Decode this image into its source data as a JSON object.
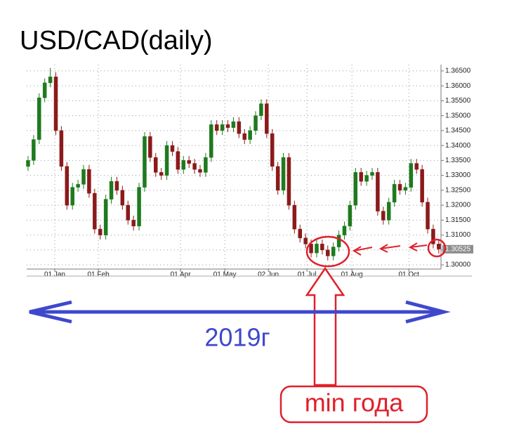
{
  "chart_data": {
    "type": "candlestick",
    "title": "USD/CAD(daily)",
    "up_color": "#1e7a1e",
    "down_color": "#8b1a1a",
    "xlim": [
      -0.25,
      74.4
    ],
    "xticks": [
      {
        "value": 4.81,
        "label": "01 Jan"
      },
      {
        "value": 12.66,
        "label": "01 Feb"
      },
      {
        "value": 27.47,
        "label": "01 Apr"
      },
      {
        "value": 35.45,
        "label": "01 May"
      },
      {
        "value": 43.29,
        "label": "02 Jun"
      },
      {
        "value": 50.25,
        "label": "01 Jul"
      },
      {
        "value": 58.35,
        "label": "01 Aug"
      },
      {
        "value": 68.61,
        "label": "01 Oct"
      }
    ],
    "ylim": [
      1.2986,
      1.3671
    ],
    "yticks": [
      {
        "value": 1.3,
        "label": "1.30000"
      },
      {
        "value": 1.305,
        "label": "1.30500"
      },
      {
        "value": 1.31,
        "label": "1.31000"
      },
      {
        "value": 1.315,
        "label": "1.31500"
      },
      {
        "value": 1.32,
        "label": "1.32000"
      },
      {
        "value": 1.325,
        "label": "1.32500"
      },
      {
        "value": 1.33,
        "label": "1.33000"
      },
      {
        "value": 1.335,
        "label": "1.33500"
      },
      {
        "value": 1.34,
        "label": "1.34000"
      },
      {
        "value": 1.345,
        "label": "1.34500"
      },
      {
        "value": 1.35,
        "label": "1.35000"
      },
      {
        "value": 1.355,
        "label": "1.35500"
      },
      {
        "value": 1.36,
        "label": "1.36000"
      },
      {
        "value": 1.365,
        "label": "1.36500"
      }
    ],
    "grid": true,
    "last_price": 1.30525,
    "open": [
      1.333,
      1.335,
      1.342,
      1.356,
      1.361,
      1.363,
      1.345,
      1.333,
      1.32,
      1.326,
      1.327,
      1.332,
      1.324,
      1.312,
      1.31,
      1.322,
      1.328,
      1.325,
      1.32,
      1.315,
      1.313,
      1.326,
      1.343,
      1.336,
      1.331,
      1.33,
      1.34,
      1.338,
      1.332,
      1.335,
      1.334,
      1.332,
      1.331,
      1.336,
      1.347,
      1.345,
      1.347,
      1.346,
      1.348,
      1.344,
      1.342,
      1.345,
      1.35,
      1.354,
      1.344,
      1.333,
      1.325,
      1.336,
      1.32,
      1.312,
      1.309,
      1.307,
      1.304,
      1.307,
      1.305,
      1.303,
      1.306,
      1.31,
      1.313,
      1.32,
      1.331,
      1.328,
      1.33,
      1.331,
      1.318,
      1.315,
      1.321,
      1.327,
      1.325,
      1.326,
      1.334,
      1.332,
      1.321,
      1.312,
      1.307
    ],
    "high": [
      1.3365,
      1.3435,
      1.3575,
      1.3625,
      1.366,
      1.3645,
      1.3465,
      1.3345,
      1.3275,
      1.3285,
      1.3335,
      1.3335,
      1.3255,
      1.3135,
      1.3235,
      1.3295,
      1.3295,
      1.3265,
      1.3215,
      1.3165,
      1.3275,
      1.3445,
      1.3445,
      1.3375,
      1.3325,
      1.3415,
      1.3415,
      1.3395,
      1.3365,
      1.3365,
      1.3355,
      1.3335,
      1.3375,
      1.3485,
      1.3485,
      1.3485,
      1.3485,
      1.3495,
      1.3495,
      1.3455,
      1.3465,
      1.3515,
      1.3555,
      1.3555,
      1.3455,
      1.3345,
      1.3375,
      1.3375,
      1.3215,
      1.3135,
      1.3105,
      1.3085,
      1.3085,
      1.3085,
      1.3065,
      1.3075,
      1.3115,
      1.3145,
      1.3215,
      1.3325,
      1.3325,
      1.3315,
      1.3325,
      1.3325,
      1.3195,
      1.3225,
      1.3285,
      1.3285,
      1.3275,
      1.3355,
      1.3355,
      1.3335,
      1.3225,
      1.3135,
      1.3085
    ],
    "low": [
      1.3315,
      1.3335,
      1.3405,
      1.3545,
      1.3595,
      1.3435,
      1.3315,
      1.3185,
      1.3185,
      1.3245,
      1.3255,
      1.3225,
      1.3105,
      1.3085,
      1.3085,
      1.3205,
      1.3235,
      1.3185,
      1.3135,
      1.3115,
      1.3115,
      1.3245,
      1.3345,
      1.3295,
      1.3285,
      1.3285,
      1.3365,
      1.3305,
      1.3305,
      1.3325,
      1.3305,
      1.3295,
      1.3295,
      1.3345,
      1.3435,
      1.3435,
      1.3445,
      1.3445,
      1.3425,
      1.3405,
      1.3405,
      1.3435,
      1.3485,
      1.3425,
      1.3315,
      1.3235,
      1.3235,
      1.3185,
      1.3105,
      1.3075,
      1.3055,
      1.3025,
      1.3025,
      1.3035,
      1.3015,
      1.3015,
      1.3045,
      1.3085,
      1.3115,
      1.3185,
      1.3265,
      1.3265,
      1.3285,
      1.3165,
      1.3135,
      1.3135,
      1.3195,
      1.3235,
      1.3235,
      1.3245,
      1.3305,
      1.3195,
      1.3105,
      1.3055,
      1.3038
    ],
    "close": [
      1.335,
      1.342,
      1.356,
      1.361,
      1.363,
      1.345,
      1.333,
      1.32,
      1.326,
      1.327,
      1.332,
      1.324,
      1.312,
      1.31,
      1.322,
      1.328,
      1.325,
      1.32,
      1.315,
      1.313,
      1.326,
      1.343,
      1.336,
      1.331,
      1.33,
      1.34,
      1.338,
      1.332,
      1.335,
      1.334,
      1.332,
      1.331,
      1.336,
      1.347,
      1.345,
      1.347,
      1.346,
      1.348,
      1.344,
      1.342,
      1.345,
      1.35,
      1.354,
      1.344,
      1.333,
      1.325,
      1.336,
      1.32,
      1.312,
      1.309,
      1.307,
      1.304,
      1.307,
      1.305,
      1.303,
      1.306,
      1.31,
      1.313,
      1.32,
      1.331,
      1.328,
      1.33,
      1.331,
      1.318,
      1.315,
      1.321,
      1.327,
      1.325,
      1.326,
      1.334,
      1.332,
      1.321,
      1.312,
      1.307,
      1.3053
    ],
    "annotations": [
      "2019г",
      "min года"
    ]
  }
}
